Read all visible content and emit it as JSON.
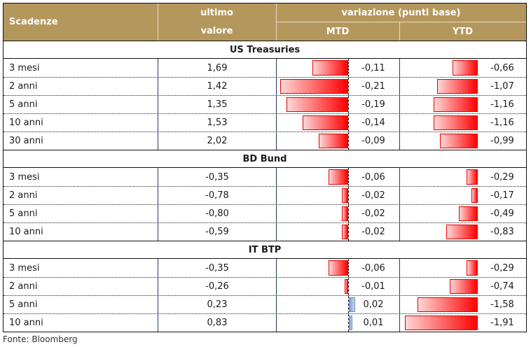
{
  "header": {
    "col_scadenze": "Scadenze",
    "col_ultimo_line1": "ultimo",
    "col_ultimo_line2": "valore",
    "col_variazione": "variazione (punti base)",
    "col_mtd": "MTD",
    "col_ytd": "YTD"
  },
  "colors": {
    "header_bg": "#b4975c",
    "negative_bar": "#ff0000",
    "positive_bar": "#7d9fd0"
  },
  "sections": [
    {
      "title": "US Treasuries",
      "rows": [
        {
          "scadenza": "3 mesi",
          "ultimo": "1,69",
          "mtd": -0.11,
          "mtd_label": "-0,11",
          "ytd": -0.66,
          "ytd_label": "-0,66"
        },
        {
          "scadenza": "2 anni",
          "ultimo": "1,42",
          "mtd": -0.21,
          "mtd_label": "-0,21",
          "ytd": -1.07,
          "ytd_label": "-1,07"
        },
        {
          "scadenza": "5 anni",
          "ultimo": "1,35",
          "mtd": -0.19,
          "mtd_label": "-0,19",
          "ytd": -1.16,
          "ytd_label": "-1,16"
        },
        {
          "scadenza": "10 anni",
          "ultimo": "1,53",
          "mtd": -0.14,
          "mtd_label": "-0,14",
          "ytd": -1.16,
          "ytd_label": "-1,16"
        },
        {
          "scadenza": "30 anni",
          "ultimo": "2,02",
          "mtd": -0.09,
          "mtd_label": "-0,09",
          "ytd": -0.99,
          "ytd_label": "-0,99"
        }
      ]
    },
    {
      "title": "BD Bund",
      "rows": [
        {
          "scadenza": "3 mesi",
          "ultimo": "-0,35",
          "mtd": -0.06,
          "mtd_label": "-0,06",
          "ytd": -0.29,
          "ytd_label": "-0,29"
        },
        {
          "scadenza": "2 anni",
          "ultimo": "-0,78",
          "mtd": -0.02,
          "mtd_label": "-0,02",
          "ytd": -0.17,
          "ytd_label": "-0,17"
        },
        {
          "scadenza": "5 anni",
          "ultimo": "-0,80",
          "mtd": -0.02,
          "mtd_label": "-0,02",
          "ytd": -0.49,
          "ytd_label": "-0,49"
        },
        {
          "scadenza": "10 anni",
          "ultimo": "-0,59",
          "mtd": -0.02,
          "mtd_label": "-0,02",
          "ytd": -0.83,
          "ytd_label": "-0,83"
        }
      ]
    },
    {
      "title": "IT BTP",
      "rows": [
        {
          "scadenza": "3 mesi",
          "ultimo": "-0,35",
          "mtd": -0.06,
          "mtd_label": "-0,06",
          "ytd": -0.29,
          "ytd_label": "-0,29"
        },
        {
          "scadenza": "2 anni",
          "ultimo": "-0,26",
          "mtd": -0.01,
          "mtd_label": "-0,01",
          "ytd": -0.74,
          "ytd_label": "-0,74"
        },
        {
          "scadenza": "5 anni",
          "ultimo": "0,23",
          "mtd": 0.02,
          "mtd_label": "0,02",
          "ytd": -1.58,
          "ytd_label": "-1,58"
        },
        {
          "scadenza": "10 anni",
          "ultimo": "0,83",
          "mtd": 0.01,
          "mtd_label": "0,01",
          "ytd": -1.91,
          "ytd_label": "-1,91"
        }
      ]
    }
  ],
  "footer": {
    "source": "Fonte: Bloomberg"
  }
}
